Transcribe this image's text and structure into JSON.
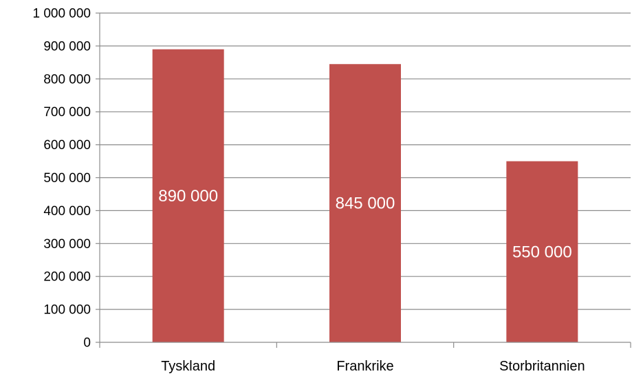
{
  "chart_data": {
    "type": "bar",
    "categories": [
      "Tyskland",
      "Frankrike",
      "Storbritannien"
    ],
    "values": [
      890000,
      845000,
      550000
    ],
    "data_labels": [
      "890 000",
      "845 000",
      "550 000"
    ],
    "title": "",
    "xlabel": "",
    "ylabel": "",
    "ylim": [
      0,
      1000000
    ],
    "yticks": [
      0,
      100000,
      200000,
      300000,
      400000,
      500000,
      600000,
      700000,
      800000,
      900000,
      1000000
    ],
    "ytick_labels": [
      "0",
      "100 000",
      "200 000",
      "300 000",
      "400 000",
      "500 000",
      "600 000",
      "700 000",
      "800 000",
      "900 000",
      "1 000 000"
    ],
    "grid": true,
    "legend": "none",
    "bar_color": "#c0504d",
    "grid_color": "#8c8c8c"
  }
}
